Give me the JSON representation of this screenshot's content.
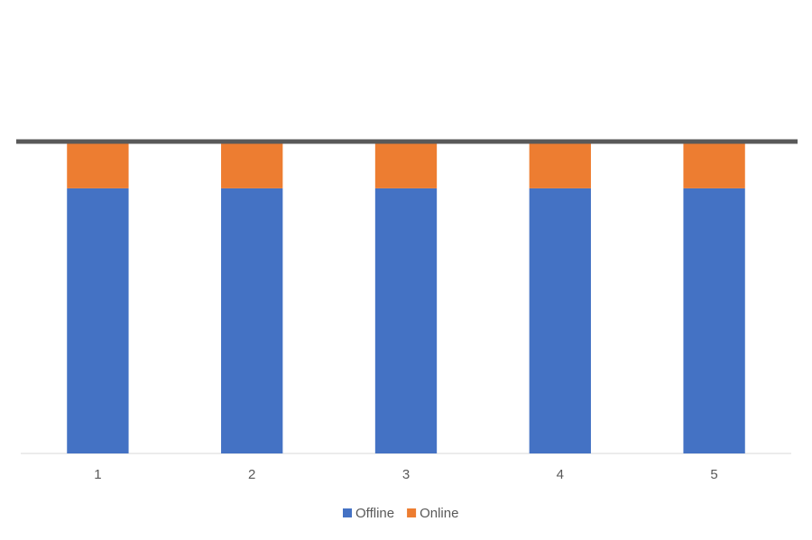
{
  "chart_data": {
    "type": "stacked_bar",
    "categories": [
      "1",
      "2",
      "3",
      "4",
      "5"
    ],
    "series": [
      {
        "name": "Offline",
        "color": "#4472c4",
        "values": [
          85,
          85,
          85,
          85,
          85
        ]
      },
      {
        "name": "Online",
        "color": "#ed7d31",
        "values": [
          15,
          15,
          15,
          15,
          15
        ]
      }
    ],
    "ylim": [
      0,
      100
    ],
    "legend": "bottom"
  }
}
